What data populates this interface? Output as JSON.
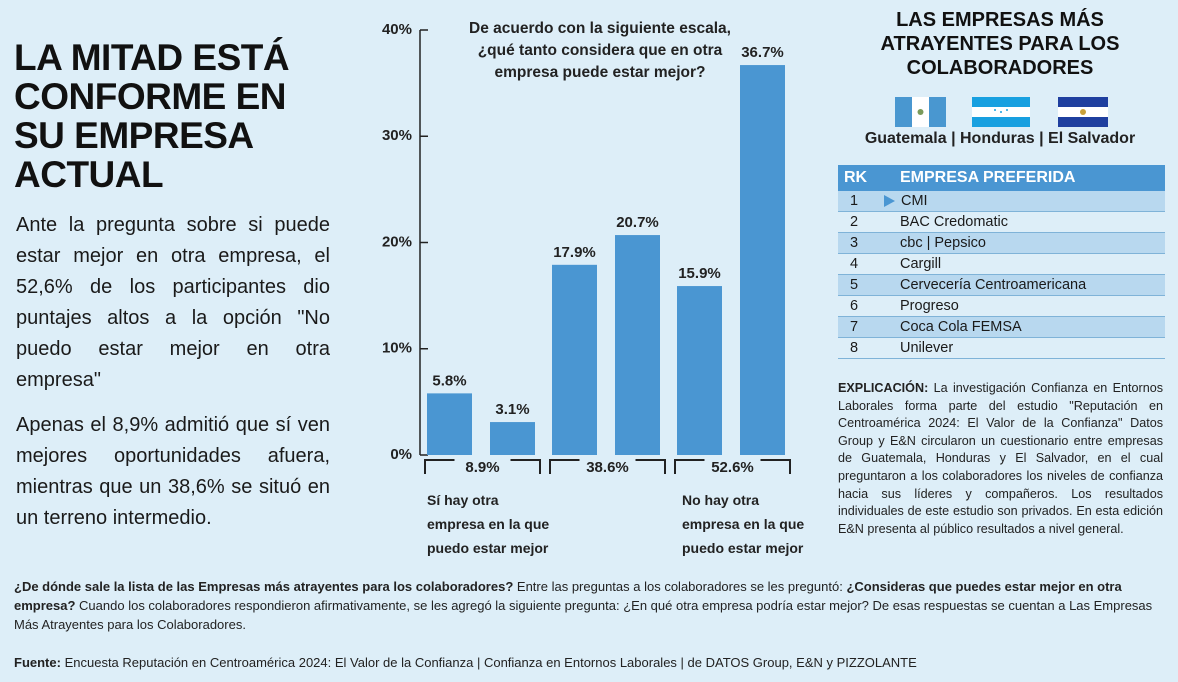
{
  "headline": "LA MITAD ESTÁ CONFORME EN SU EMPRESA ACTUAL",
  "intro": [
    "Ante la pregunta sobre si puede estar mejor en otra empresa, el 52,6% de los participantes dio puntajes altos a la opción \"No puedo estar mejor en otra empresa\"",
    "Apenas el 8,9% admitió que sí ven mejores oportunidades afuera, mientras que un 38,6% se situó en un terreno intermedio."
  ],
  "chart_data": {
    "type": "bar",
    "title": "De acuerdo con la siguiente escala, ¿qué tanto considera que en otra empresa puede estar mejor?",
    "categories": [
      null,
      null,
      null,
      null,
      null,
      null
    ],
    "values": [
      5.8,
      3.1,
      17.9,
      20.7,
      15.9,
      36.7
    ],
    "value_labels": [
      "5.8%",
      "3.1%",
      "17.9%",
      "20.7%",
      "15.9%",
      "36.7%"
    ],
    "color": "#4a96d2",
    "groups": [
      "8.9%",
      "38.6%",
      "52.6%"
    ],
    "annotations": [
      "Sí hay otra empresa en la que puedo estar mejor",
      "No hay otra empresa en la que puedo estar mejor"
    ],
    "ylim": [
      0,
      40
    ],
    "yticks": [
      {
        "value": 0,
        "label": "0%"
      },
      {
        "value": 10,
        "label": "10%"
      },
      {
        "value": 20,
        "label": "20%"
      },
      {
        "value": 30,
        "label": "30%"
      },
      {
        "value": 40,
        "label": "40%"
      }
    ],
    "grid": false
  },
  "ranking": {
    "title": "LAS EMPRESAS MÁS ATRAYENTES PARA LOS COLABORADORES",
    "countries": "Guatemala | Honduras | El Salvador",
    "columns": [
      "RK",
      "EMPRESA PREFERIDA"
    ],
    "rows": [
      [
        1,
        "CMI"
      ],
      [
        2,
        "BAC Credomatic"
      ],
      [
        3,
        "cbc | Pepsico"
      ],
      [
        4,
        "Cargill"
      ],
      [
        5,
        "Cervecería Centroamericana"
      ],
      [
        6,
        "Progreso"
      ],
      [
        7,
        "Coca Cola FEMSA"
      ],
      [
        8,
        "Unilever"
      ]
    ]
  },
  "explanation": {
    "label": "EXPLICACIÓN:",
    "text": "La investigación Confianza en Entornos Laborales forma parte del estudio \"Reputación en Centroamérica 2024: El Valor de la Confianza\" Datos Group y E&N circularon un cuestionario entre empresas de Guatemala, Honduras y El Salvador, en el cual preguntaron a los colaboradores los niveles de confianza hacia sus líderes y compañeros. Los resultados individuales de este estudio son privados. En esta edición E&N presenta al público resultados a nivel general."
  },
  "footer": {
    "question": "¿De dónde sale la lista de las Empresas más atrayentes para los colaboradores?",
    "text1": "Entre las preguntas a los colaboradores se les preguntó:",
    "question2": "¿Consideras que puedes estar mejor en otra empresa?",
    "text2": "Cuando los colaboradores respondieron afirmativamente, se les agregó la siguiente pregunta: ¿En qué otra empresa podría estar mejor? De esas respuestas se cuentan a Las Empresas Más Atrayentes para los Colaboradores."
  },
  "source": {
    "label": "Fuente:",
    "text": "Encuesta Reputación en Centroamérica 2024: El Valor de la Confianza | Confianza en Entornos Laborales | de DATOS Group, E&N y PIZZOLANTE"
  }
}
